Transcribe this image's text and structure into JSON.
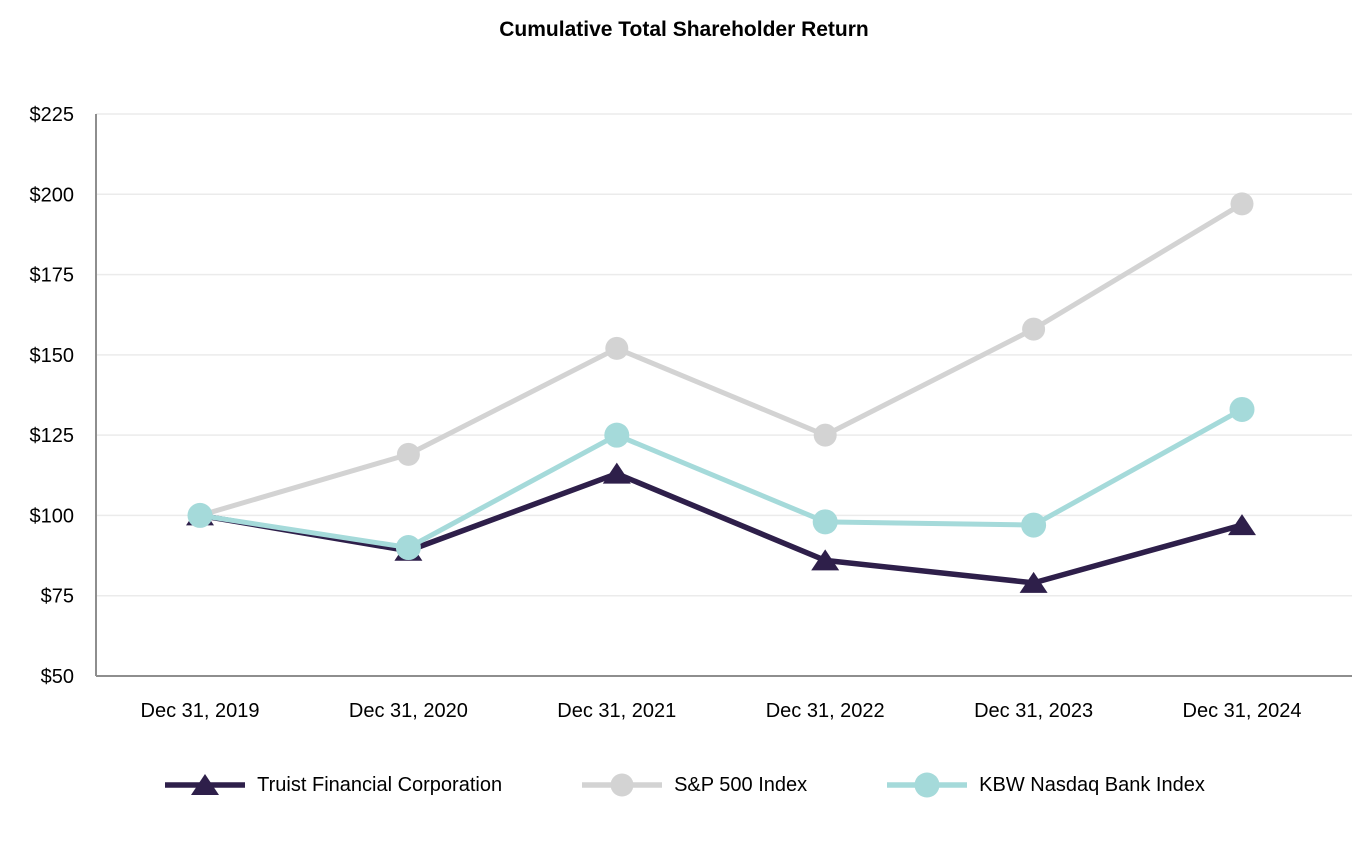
{
  "chart_data": {
    "type": "line",
    "title": "Cumulative Total Shareholder Return",
    "x_categories": [
      "Dec 31, 2019",
      "Dec 31, 2020",
      "Dec 31, 2021",
      "Dec 31, 2022",
      "Dec 31, 2023",
      "Dec 31, 2024"
    ],
    "y_axis": {
      "min": 50,
      "max": 225,
      "step": 25,
      "tick_prefix": "$",
      "tick_labels": [
        "$225",
        "$200",
        "$175",
        "$150",
        "$125",
        "$100",
        "$75",
        "$50"
      ]
    },
    "grid": "horizontal-only",
    "legend_position": "bottom",
    "series": [
      {
        "name": "Truist Financial Corporation",
        "marker": "triangle",
        "color": "#2e1f4a",
        "values": [
          100,
          89,
          113,
          86,
          79,
          97
        ]
      },
      {
        "name": "S&P 500 Index",
        "marker": "circle",
        "color": "#d3d3d3",
        "values": [
          100,
          119,
          152,
          125,
          158,
          197
        ]
      },
      {
        "name": "KBW Nasdaq Bank Index",
        "marker": "circle",
        "color": "#a5dada",
        "values": [
          100,
          90,
          125,
          98,
          97,
          133
        ]
      }
    ],
    "colors": {
      "axis": "#8e8e8e",
      "grid": "#ebebeb",
      "text": "#000000",
      "background": "#ffffff"
    }
  }
}
